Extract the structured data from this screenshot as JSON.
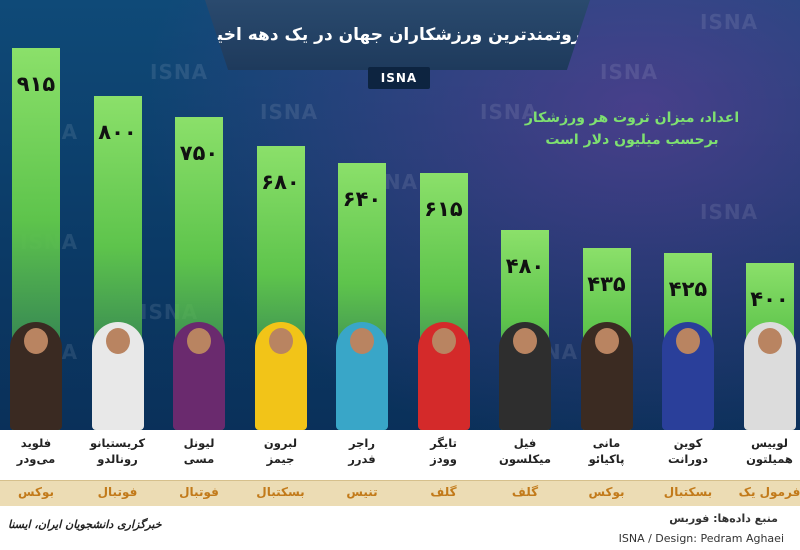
{
  "header": {
    "title": "ثروتمندترین ورزشکاران جهان در یک دهه اخیر",
    "agency_tab": "ISNA"
  },
  "note": {
    "line1": "اعداد، میزان ثروت هر ورزشکار",
    "line2": "برحسب میلیون دلار است"
  },
  "watermark_text": "ISNA",
  "chart_data": {
    "type": "bar",
    "categories": [
      "فلوید می‌ودر",
      "کریستیانو رونالدو",
      "لیونل مسی",
      "لبرون جیمز",
      "راجر فدرر",
      "تایگر وودز",
      "فیل میکلسون",
      "مانی پاکیائو",
      "کوین دورانت",
      "لوییس همیلتون"
    ],
    "name_lines": [
      [
        "فلوید",
        "می‌ودر"
      ],
      [
        "کریستیانو",
        "رونالدو"
      ],
      [
        "لیونل",
        "مسی"
      ],
      [
        "لبرون",
        "جیمز"
      ],
      [
        "راجر",
        "فدرر"
      ],
      [
        "تایگر",
        "وودز"
      ],
      [
        "فیل",
        "میکلسون"
      ],
      [
        "مانی",
        "پاکیائو"
      ],
      [
        "کوین",
        "دورانت"
      ],
      [
        "لوییس",
        "همیلتون"
      ]
    ],
    "sports": [
      "بوکس",
      "فوتبال",
      "فوتبال",
      "بسکتبال",
      "تنیس",
      "گلف",
      "گلف",
      "بوکس",
      "بسکتبال",
      "فرمول یک"
    ],
    "values": [
      915,
      800,
      750,
      680,
      640,
      615,
      480,
      435,
      425,
      400
    ],
    "value_labels": [
      "۹۱۵",
      "۸۰۰",
      "۷۵۰",
      "۶۸۰",
      "۶۴۰",
      "۶۱۵",
      "۴۸۰",
      "۴۳۵",
      "۴۲۵",
      "۴۰۰"
    ],
    "jersey_colors": [
      "#3a2a22",
      "#e8e8e8",
      "#6a2a6e",
      "#f2c418",
      "#39a6c8",
      "#d42a2a",
      "#2e2e2e",
      "#3b2b22",
      "#2a3f9a",
      "#dcdcdc"
    ],
    "bar_color": "#6fd35a",
    "label_color": "#111111"
  },
  "footer": {
    "source": "منبع داده‌ها: فوربس",
    "credit": "ISNA / Design: Pedram Aghaei",
    "agency": "خبرگزاری دانشجویان ایران، ایسنا"
  }
}
